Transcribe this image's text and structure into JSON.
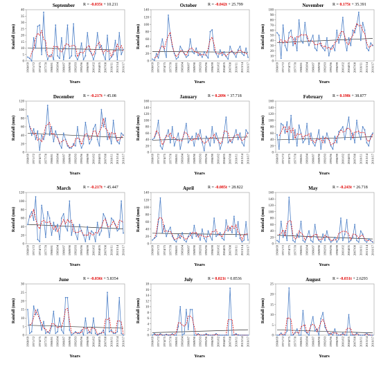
{
  "chart_data": [
    {
      "type": "line",
      "title": "September",
      "eq_prefix": "R = ",
      "eq_coef": "-0.035t",
      "eq_rest": "+ 10.211",
      "xlabel": "Years",
      "ylabel": "Rainfall (mm)",
      "ylim": [
        0,
        40
      ],
      "yticks": [
        0,
        5,
        10,
        15,
        20,
        25,
        30,
        35,
        40
      ],
      "x_tick_labels": [
        "1968/69",
        "1971/72",
        "1974/75",
        "1977/78",
        "1980/81",
        "1983/84",
        "1986/87",
        "1989/90",
        "1992/93",
        "1995/96",
        "1998/99",
        "2001/02",
        "2004/05",
        "2007/08",
        "2010/11",
        "2013/14",
        "2016/17"
      ],
      "trend": {
        "slope": -0.035,
        "intercept": 10.211
      },
      "series": [
        {
          "values": [
            3,
            2,
            0,
            18,
            10,
            27,
            28,
            5,
            38,
            8,
            1,
            4,
            5,
            1,
            28,
            4,
            2,
            18,
            1,
            10,
            28,
            2,
            4,
            29,
            4,
            1,
            5,
            14,
            1,
            4,
            22,
            8,
            6,
            1,
            6,
            22,
            10,
            12,
            5,
            1,
            20,
            1,
            3,
            5,
            16,
            1,
            22,
            5,
            9
          ]
        }
      ]
    },
    {
      "type": "line",
      "title": "October",
      "eq_prefix": "R = ",
      "eq_coef": "-0.042t",
      "eq_rest": "+ 25.799",
      "xlabel": "Years",
      "ylabel": "Rainfall (mm)",
      "ylim": [
        0,
        140
      ],
      "yticks": [
        0,
        20,
        40,
        60,
        80,
        100,
        120,
        140
      ],
      "x_tick_labels": [
        "1968/69",
        "1971/72",
        "1974/75",
        "1977/78",
        "1980/81",
        "1983/84",
        "1986/87",
        "1989/90",
        "1992/93",
        "1995/96",
        "1998/99",
        "2001/02",
        "2004/05",
        "2007/08",
        "2010/11",
        "2013/14",
        "2016/17"
      ],
      "trend": {
        "slope": -0.042,
        "intercept": 25.799
      },
      "series": [
        {
          "values": [
            5,
            2,
            20,
            8,
            35,
            60,
            30,
            10,
            125,
            70,
            40,
            20,
            5,
            10,
            40,
            30,
            20,
            10,
            15,
            60,
            25,
            20,
            35,
            15,
            20,
            10,
            25,
            15,
            8,
            80,
            85,
            30,
            20,
            10,
            30,
            15,
            25,
            12,
            5,
            40,
            25,
            20,
            10,
            30,
            40,
            20,
            15,
            35,
            10
          ]
        }
      ]
    },
    {
      "type": "line",
      "title": "November",
      "eq_prefix": "R = ",
      "eq_coef": "0.175t",
      "eq_rest": "+ 35.391",
      "xlabel": "Years",
      "ylabel": "Rainfall (mm)",
      "ylim": [
        0,
        100
      ],
      "yticks": [
        0,
        10,
        20,
        30,
        40,
        50,
        60,
        70,
        80,
        90,
        100
      ],
      "x_tick_labels": [
        "1968/69",
        "1971/72",
        "1974/75",
        "1977/78",
        "1980/81",
        "1983/84",
        "1986/87",
        "1989/90",
        "1992/93",
        "1995/96",
        "1998/99",
        "2001/02",
        "2004/05",
        "2007/08",
        "2010/11",
        "2013/14",
        "2016/17"
      ],
      "trend": {
        "slope": 0.175,
        "intercept": 35.391
      },
      "series": [
        {
          "values": [
            55,
            50,
            5,
            70,
            30,
            20,
            55,
            60,
            30,
            45,
            20,
            80,
            40,
            35,
            75,
            45,
            30,
            40,
            50,
            25,
            20,
            50,
            30,
            25,
            20,
            45,
            10,
            25,
            30,
            20,
            60,
            35,
            50,
            85,
            40,
            20,
            45,
            30,
            60,
            55,
            70,
            95,
            40,
            75,
            60,
            25,
            20,
            35,
            30
          ]
        }
      ]
    },
    {
      "type": "line",
      "title": "December",
      "eq_prefix": "R = ",
      "eq_coef": "-0.217t",
      "eq_rest": "+ 45.08",
      "xlabel": "Years",
      "ylabel": "Rainfall (mm)",
      "ylim": [
        0,
        120
      ],
      "yticks": [
        0,
        20,
        40,
        60,
        80,
        100,
        120
      ],
      "x_tick_labels": [
        "1968/69",
        "1971/72",
        "1974/75",
        "1977/78",
        "1980/81",
        "1983/84",
        "1986/87",
        "1989/90",
        "1992/93",
        "1995/96",
        "1998/99",
        "2001/02",
        "2004/05",
        "2007/08",
        "2010/11",
        "2013/14",
        "2016/17"
      ],
      "trend": {
        "slope": -0.217,
        "intercept": 45.08
      },
      "series": [
        {
          "values": [
            85,
            60,
            40,
            55,
            30,
            50,
            5,
            40,
            30,
            45,
            110,
            40,
            60,
            25,
            50,
            35,
            20,
            10,
            45,
            30,
            15,
            10,
            10,
            20,
            15,
            60,
            25,
            10,
            20,
            70,
            40,
            20,
            30,
            55,
            65,
            30,
            15,
            100,
            60,
            80,
            30,
            45,
            20,
            75,
            35,
            25,
            20,
            45,
            40
          ]
        }
      ]
    },
    {
      "type": "line",
      "title": "January",
      "eq_prefix": "R = ",
      "eq_coef": "0.209t",
      "eq_rest": "+ 37.718",
      "xlabel": "Years",
      "ylabel": "Rainfall (mm)",
      "ylim": [
        0,
        160
      ],
      "yticks": [
        0,
        20,
        40,
        60,
        80,
        100,
        120,
        140,
        160
      ],
      "x_tick_labels": [
        "1968/69",
        "1971/72",
        "1974/75",
        "1977/78",
        "1980/81",
        "1983/84",
        "1986/87",
        "1989/90",
        "1992/93",
        "1995/96",
        "1998/99",
        "2001/02",
        "2004/05",
        "2007/08",
        "2010/11",
        "2013/14",
        "2016/17"
      ],
      "trend": {
        "slope": 0.209,
        "intercept": 37.718
      },
      "series": [
        {
          "values": [
            40,
            45,
            60,
            100,
            20,
            10,
            40,
            50,
            70,
            30,
            80,
            20,
            40,
            60,
            10,
            40,
            60,
            90,
            30,
            40,
            50,
            20,
            60,
            40,
            70,
            30,
            5,
            50,
            40,
            20,
            80,
            30,
            60,
            40,
            10,
            30,
            60,
            110,
            30,
            40,
            30,
            50,
            70,
            40,
            60,
            30,
            20,
            70,
            60
          ]
        }
      ]
    },
    {
      "type": "line",
      "title": "February",
      "eq_prefix": "R = ",
      "eq_coef": "0.198t",
      "eq_rest": "+ 38.877",
      "xlabel": "Years",
      "ylabel": "Rainfall (mm)",
      "ylim": [
        0,
        160
      ],
      "yticks": [
        0,
        20,
        40,
        60,
        80,
        100,
        120,
        140,
        160
      ],
      "x_tick_labels": [
        "1968/69",
        "1971/72",
        "1974/75",
        "1977/78",
        "1980/81",
        "1983/84",
        "1986/87",
        "1989/90",
        "1992/93",
        "1995/96",
        "1998/99",
        "2001/02",
        "2004/05",
        "2007/08",
        "2010/11",
        "2013/14",
        "2016/17"
      ],
      "trend": {
        "slope": 0.198,
        "intercept": 38.877
      },
      "series": [
        {
          "values": [
            55,
            10,
            90,
            85,
            60,
            95,
            30,
            115,
            40,
            70,
            20,
            85,
            60,
            30,
            40,
            90,
            25,
            60,
            30,
            20,
            40,
            70,
            10,
            50,
            30,
            60,
            40,
            20,
            10,
            50,
            30,
            65,
            70,
            80,
            40,
            75,
            110,
            40,
            60,
            30,
            100,
            60,
            40,
            80,
            70,
            30,
            20,
            50,
            60
          ]
        }
      ]
    },
    {
      "type": "line",
      "title": "March",
      "eq_prefix": "R = ",
      "eq_coef": "-0.217t",
      "eq_rest": "+ 45.447",
      "xlabel": "Years",
      "ylabel": "Rainfall (mm)",
      "ylim": [
        0,
        120
      ],
      "yticks": [
        0,
        20,
        40,
        60,
        80,
        100,
        120
      ],
      "x_tick_labels": [
        "1968/69",
        "1971/72",
        "1974/75",
        "1977/78",
        "1980/81",
        "1983/84",
        "1986/87",
        "1989/90",
        "1992/93",
        "1995/96",
        "1998/99",
        "2001/02",
        "2004/05",
        "2007/08",
        "2010/11",
        "2013/14",
        "2016/17"
      ],
      "trend": {
        "slope": -0.217,
        "intercept": 45.447
      },
      "series": [
        {
          "values": [
            45,
            65,
            75,
            55,
            110,
            10,
            5,
            90,
            60,
            15,
            75,
            60,
            20,
            50,
            30,
            45,
            10,
            60,
            70,
            40,
            30,
            100,
            20,
            45,
            25,
            10,
            45,
            30,
            20,
            5,
            40,
            10,
            30,
            25,
            5,
            50,
            20,
            30,
            70,
            60,
            45,
            15,
            60,
            55,
            45,
            30,
            35,
            100,
            25
          ]
        }
      ]
    },
    {
      "type": "line",
      "title": "April",
      "eq_prefix": "R = ",
      "eq_coef": "-0.085t",
      "eq_rest": "+ 28.822",
      "xlabel": "Years",
      "ylabel": "Rainfall (mm)",
      "ylim": [
        0,
        140
      ],
      "yticks": [
        0,
        20,
        40,
        60,
        80,
        100,
        120,
        140
      ],
      "x_tick_labels": [
        "1968/69",
        "1971/72",
        "1974/75",
        "1977/78",
        "1980/81",
        "1983/84",
        "1986/87",
        "1989/90",
        "1992/93",
        "1995/96",
        "1998/99",
        "2001/02",
        "2004/05",
        "2007/08",
        "2010/11",
        "2013/14",
        "2016/17"
      ],
      "trend": {
        "slope": -0.085,
        "intercept": 28.822
      },
      "series": [
        {
          "values": [
            10,
            15,
            20,
            60,
            125,
            30,
            50,
            20,
            35,
            45,
            20,
            10,
            5,
            25,
            15,
            30,
            10,
            5,
            20,
            30,
            15,
            50,
            20,
            25,
            10,
            40,
            15,
            5,
            35,
            20,
            10,
            70,
            20,
            25,
            30,
            15,
            10,
            65,
            35,
            45,
            30,
            75,
            20,
            60,
            15,
            5,
            10,
            60,
            10
          ]
        }
      ]
    },
    {
      "type": "line",
      "title": "May",
      "eq_prefix": "R = ",
      "eq_coef": "-0.243t",
      "eq_rest": "+ 26.718",
      "xlabel": "Years",
      "ylabel": "Rainfall (mm)",
      "ylim": [
        0,
        160
      ],
      "yticks": [
        0,
        20,
        40,
        60,
        80,
        100,
        120,
        140,
        160
      ],
      "x_tick_labels": [
        "1968/69",
        "1971/72",
        "1974/75",
        "1977/78",
        "1980/81",
        "1983/84",
        "1986/87",
        "1989/90",
        "1992/93",
        "1995/96",
        "1998/99",
        "2001/02",
        "2004/05",
        "2007/08",
        "2010/11",
        "2013/14",
        "2016/17"
      ],
      "trend": {
        "slope": -0.243,
        "intercept": 26.718
      },
      "series": [
        {
          "values": [
            10,
            5,
            70,
            20,
            40,
            10,
            145,
            60,
            10,
            5,
            30,
            20,
            70,
            10,
            5,
            20,
            40,
            10,
            5,
            60,
            20,
            10,
            5,
            30,
            10,
            40,
            15,
            5,
            10,
            20,
            5,
            15,
            80,
            10,
            30,
            75,
            5,
            10,
            20,
            60,
            10,
            5,
            40,
            30,
            10,
            5,
            15,
            10,
            5
          ]
        }
      ]
    },
    {
      "type": "line",
      "title": "June",
      "eq_prefix": "R = ",
      "eq_coef": "-0.036t",
      "eq_rest": "+ 5.8354",
      "xlabel": "Years",
      "ylabel": "Rainfall (mm)",
      "ylim": [
        0,
        30
      ],
      "yticks": [
        0,
        5,
        10,
        15,
        20,
        25,
        30
      ],
      "x_tick_labels": [
        "1968/69",
        "1971/72",
        "1974/75",
        "1977/78",
        "1980/81",
        "1983/84",
        "1986/87",
        "1989/90",
        "1992/93",
        "1995/96",
        "1998/99",
        "2001/02",
        "2004/05",
        "2007/08",
        "2010/11",
        "2013/14",
        "2016/17"
      ],
      "trend": {
        "slope": -0.036,
        "intercept": 5.8354
      },
      "series": [
        {
          "values": [
            15,
            1,
            2,
            17,
            12,
            15,
            10,
            3,
            8,
            1,
            2,
            1,
            5,
            14,
            1,
            2,
            10,
            3,
            1,
            22,
            22,
            3,
            0,
            1,
            2,
            1,
            1,
            3,
            0,
            10,
            1,
            2,
            1,
            10,
            1,
            0,
            1,
            1,
            3,
            0,
            25,
            2,
            3,
            1,
            1,
            2,
            22,
            1,
            0
          ]
        }
      ]
    },
    {
      "type": "line",
      "title": "July",
      "eq_prefix": "R = ",
      "eq_coef": "0.021t",
      "eq_rest": "+ 0.8536",
      "xlabel": "Years",
      "ylabel": "Rainfall (mm)",
      "ylim": [
        0,
        18
      ],
      "yticks": [
        0,
        2,
        4,
        6,
        8,
        10,
        12,
        14,
        16,
        18
      ],
      "x_tick_labels": [
        "1968/69",
        "1971/72",
        "1974/75",
        "1977/78",
        "1980/81",
        "1983/84",
        "1986/87",
        "1989/90",
        "1992/93",
        "1995/96",
        "1998/99",
        "2001/02",
        "2004/05",
        "2007/08",
        "2010/11",
        "2013/14",
        "2016/17"
      ],
      "trend": {
        "slope": 0.021,
        "intercept": 0.8536
      },
      "series": [
        {
          "values": [
            0,
            0.5,
            0,
            0,
            0.5,
            0,
            0,
            0.3,
            0,
            0,
            0.5,
            0,
            0,
            3,
            10,
            0,
            0.5,
            9,
            2,
            9,
            9,
            0,
            0,
            0.5,
            0,
            0,
            0,
            0.5,
            0,
            0,
            0,
            0,
            0.5,
            0,
            0,
            0,
            0,
            0,
            0,
            16.5,
            0,
            0,
            0.5,
            0,
            0,
            0,
            0,
            0,
            0
          ]
        }
      ]
    },
    {
      "type": "line",
      "title": "August",
      "eq_prefix": "R = ",
      "eq_coef": "-0.031t",
      "eq_rest": "+ 2.6293",
      "xlabel": "Years",
      "ylabel": "Rainfall (mm)",
      "ylim": [
        0,
        25
      ],
      "yticks": [
        0,
        5,
        10,
        15,
        20,
        25
      ],
      "x_tick_labels": [
        "1968/69",
        "1971/72",
        "1974/75",
        "1977/78",
        "1980/81",
        "1983/84",
        "1986/87",
        "1989/90",
        "1992/93",
        "1995/96",
        "1998/99",
        "2001/02",
        "2004/05",
        "2007/08",
        "2010/11",
        "2013/14",
        "2016/17"
      ],
      "trend": {
        "slope": -0.031,
        "intercept": 2.6293
      },
      "series": [
        {
          "values": [
            0,
            0,
            1,
            0,
            0,
            2,
            23,
            0,
            0,
            1,
            3,
            0,
            0,
            12,
            2,
            1,
            0,
            5,
            9,
            2,
            3,
            0,
            8,
            11,
            4,
            2,
            0,
            1,
            0,
            3,
            0,
            0,
            0,
            1,
            0,
            0,
            10,
            0,
            0,
            0,
            1,
            0,
            0,
            0,
            0,
            1,
            0,
            0,
            0
          ]
        }
      ]
    }
  ]
}
